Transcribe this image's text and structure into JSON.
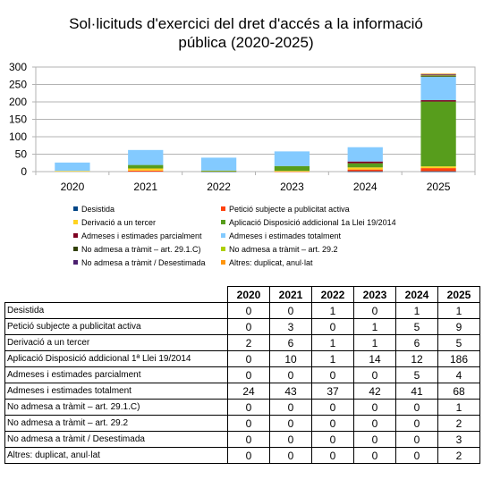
{
  "chart_data": {
    "type": "bar",
    "stacked": true,
    "title_line1": "Sol·licituds d'exercici del dret d'accés a la informació",
    "title_line2": "pública (2020-2025)",
    "categories": [
      "2020",
      "2021",
      "2022",
      "2023",
      "2024",
      "2025"
    ],
    "ylim": [
      0,
      300
    ],
    "yticks": [
      "0",
      "50",
      "100",
      "150",
      "200",
      "250",
      "300"
    ],
    "grid": true,
    "legend_position": "bottom",
    "series": [
      {
        "name": "Desistida",
        "color": "#004586",
        "values": [
          0,
          0,
          1,
          0,
          1,
          1
        ]
      },
      {
        "name": "Petició subjecte a publicitat activa",
        "color": "#ff420e",
        "values": [
          0,
          3,
          0,
          1,
          5,
          9
        ]
      },
      {
        "name": "Derivació a un tercer",
        "color": "#ffd320",
        "values": [
          2,
          6,
          1,
          1,
          6,
          5
        ]
      },
      {
        "name": "Aplicació Disposició addicional 1a Llei 19/2014",
        "color": "#579d1c",
        "values": [
          0,
          10,
          1,
          14,
          12,
          186
        ]
      },
      {
        "name": "Admeses i estimades parcialment",
        "color": "#7e0021",
        "values": [
          0,
          0,
          0,
          0,
          5,
          4
        ]
      },
      {
        "name": "Admeses i estimades totalment",
        "color": "#83caff",
        "values": [
          24,
          43,
          37,
          42,
          41,
          68
        ]
      },
      {
        "name": "No admesa a tràmit – art. 29.1.C)",
        "color": "#314004",
        "values": [
          0,
          0,
          0,
          0,
          0,
          1
        ]
      },
      {
        "name": "No admesa a tràmit – art. 29.2",
        "color": "#aecf00",
        "values": [
          0,
          0,
          0,
          0,
          0,
          2
        ]
      },
      {
        "name": "No admesa a tràmit / Desestimada",
        "color": "#4b1f6f",
        "values": [
          0,
          0,
          0,
          0,
          0,
          3
        ]
      },
      {
        "name": "Altres: duplicat, anul·lat",
        "color": "#ff950e",
        "values": [
          0,
          0,
          0,
          0,
          0,
          2
        ]
      }
    ]
  },
  "table": {
    "years": [
      "2020",
      "2021",
      "2022",
      "2023",
      "2024",
      "2025"
    ],
    "rows": [
      {
        "label": "Desistida",
        "values": [
          "0",
          "0",
          "1",
          "0",
          "1",
          "1"
        ]
      },
      {
        "label": "Petició subjecte a publicitat activa",
        "values": [
          "0",
          "3",
          "0",
          "1",
          "5",
          "9"
        ]
      },
      {
        "label": "Derivació a un tercer",
        "values": [
          "2",
          "6",
          "1",
          "1",
          "6",
          "5"
        ]
      },
      {
        "label": "Aplicació Disposició addicional 1ª Llei 19/2014",
        "values": [
          "0",
          "10",
          "1",
          "14",
          "12",
          "186"
        ]
      },
      {
        "label": "Admeses i estimades parcialment",
        "values": [
          "0",
          "0",
          "0",
          "0",
          "5",
          "4"
        ]
      },
      {
        "label": "Admeses i estimades totalment",
        "values": [
          "24",
          "43",
          "37",
          "42",
          "41",
          "68"
        ]
      },
      {
        "label": "No admesa a tràmit – art. 29.1.C)",
        "values": [
          "0",
          "0",
          "0",
          "0",
          "0",
          "1"
        ]
      },
      {
        "label": "No admesa a tràmit – art. 29.2",
        "values": [
          "0",
          "0",
          "0",
          "0",
          "0",
          "2"
        ]
      },
      {
        "label": "No admesa a tràmit / Desestimada",
        "values": [
          "0",
          "0",
          "0",
          "0",
          "0",
          "3"
        ]
      },
      {
        "label": "Altres: duplicat, anul·lat",
        "values": [
          "0",
          "0",
          "0",
          "0",
          "0",
          "2"
        ]
      }
    ]
  }
}
